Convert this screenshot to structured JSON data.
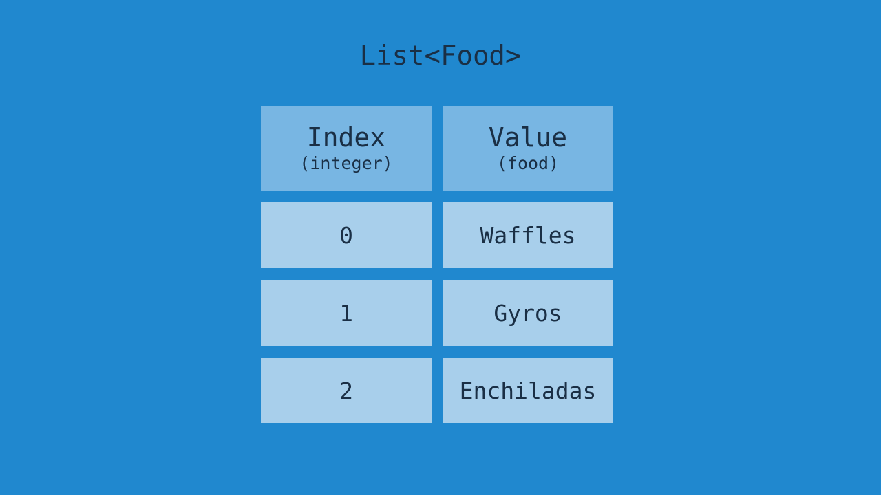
{
  "title": "List<Food>",
  "headers": [
    {
      "label": "Index",
      "sub": "(integer)"
    },
    {
      "label": "Value",
      "sub": "(food)"
    }
  ],
  "rows": [
    {
      "index": "0",
      "value": "Waffles"
    },
    {
      "index": "1",
      "value": "Gyros"
    },
    {
      "index": "2",
      "value": "Enchiladas"
    }
  ],
  "colors": {
    "background": "#2088cf",
    "header": "#78b6e3",
    "cell": "#a8cfeb",
    "text": "#1a2f45"
  }
}
